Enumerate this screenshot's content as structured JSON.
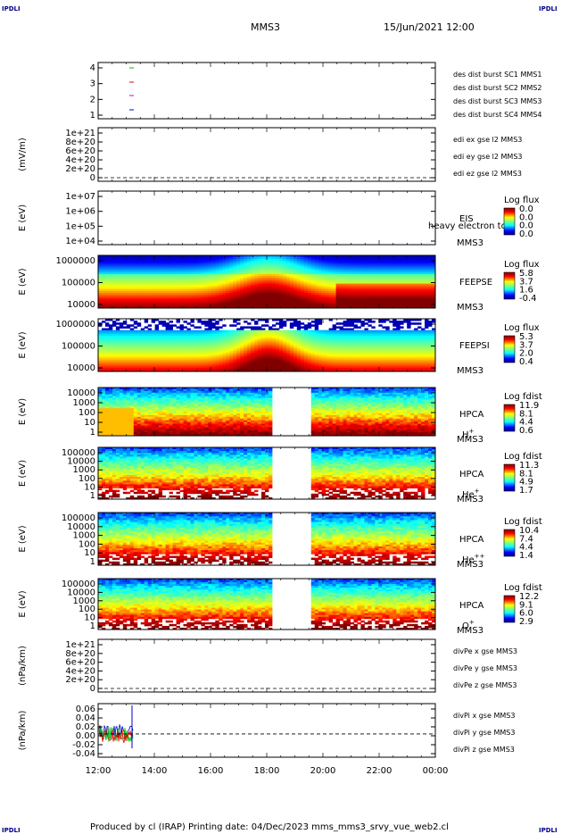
{
  "header": {
    "title": "MMS3",
    "datetime": "15/Jun/2021 12:00",
    "corner_label": "IPDLI"
  },
  "footer": {
    "text": "Produced by cl (IRAP)   Printing date: 04/Dec/2023   mms_mms3_srvy_vue_web2.cl"
  },
  "colors": {
    "red": "#e00000",
    "green": "#00c000",
    "blue": "#0000cc",
    "magenta": "#cc00cc"
  },
  "chart_data": [
    {
      "type": "line",
      "name": "distribution modes",
      "ylim": [
        0.5,
        4.5
      ],
      "ylabel": "",
      "yticks": [
        "4",
        "3",
        "2",
        "1"
      ],
      "x": [
        "12:00",
        "14:00",
        "16:00",
        "18:00",
        "20:00",
        "22:00",
        "00:00"
      ],
      "legend": [
        {
          "label": "des dist burst SC1 MMS1",
          "color": "#0000cc"
        },
        {
          "label": "des dist burst SC2 MMS2",
          "color": "#cc00cc"
        },
        {
          "label": "des dist burst SC3 MMS3",
          "color": "#e00000"
        },
        {
          "label": "des dist burst SC4 MMS4",
          "color": "#00c000"
        }
      ]
    },
    {
      "type": "line",
      "name": "edi E field",
      "ylabel": "(mV/m)",
      "yticks": [
        "1e+21",
        "8e+20",
        "6e+20",
        "4e+20",
        "2e+20",
        "0"
      ],
      "legend": [
        {
          "label": "edi ex gse l2 MMS3",
          "color": "#e00000"
        },
        {
          "label": "edi ey gse l2 MMS3",
          "color": "#00c000"
        },
        {
          "label": "edi ez gse l2 MMS3",
          "color": "#0000cc"
        }
      ]
    },
    {
      "type": "heatmap",
      "ylabel": "E (eV)",
      "yticks": [
        "1e+07",
        "1e+06",
        "1e+05",
        "1e+04"
      ],
      "labels": [
        "EIS",
        "MMS3"
      ],
      "overlay_text": "heavy electron to",
      "colorbar": {
        "title": "Log flux",
        "ticks": [
          "0.0",
          "0.0",
          "0.0",
          "0.0"
        ]
      }
    },
    {
      "type": "heatmap",
      "ylabel": "E (eV)",
      "yticks": [
        "1000000",
        "100000",
        "10000"
      ],
      "labels": [
        "FEEPSE",
        "MMS3"
      ],
      "colorbar": {
        "title": "Log flux",
        "ticks": [
          "5.8",
          "3.7",
          "1.6",
          "-0.4"
        ]
      }
    },
    {
      "type": "heatmap",
      "ylabel": "E (eV)",
      "yticks": [
        "1000000",
        "100000",
        "10000"
      ],
      "labels": [
        "FEEPSI",
        "MMS3"
      ],
      "colorbar": {
        "title": "Log flux",
        "ticks": [
          "5.3",
          "3.7",
          "2.0",
          "0.4"
        ]
      }
    },
    {
      "type": "heatmap",
      "ylabel": "E (eV)",
      "yticks": [
        "10000",
        "1000",
        "100",
        "10",
        "1"
      ],
      "labels": [
        "HPCA",
        "MMS3"
      ],
      "species": "H",
      "charge": "+",
      "colorbar": {
        "title": "Log fdist",
        "ticks": [
          "11.9",
          "8.1",
          "4.4",
          "0.6"
        ]
      }
    },
    {
      "type": "heatmap",
      "ylabel": "E (eV)",
      "yticks": [
        "100000",
        "10000",
        "1000",
        "100",
        "10",
        "1"
      ],
      "labels": [
        "HPCA",
        "MMS3"
      ],
      "species": "He",
      "charge": "+",
      "colorbar": {
        "title": "Log fdist",
        "ticks": [
          "11.3",
          "8.1",
          "4.9",
          "1.7"
        ]
      }
    },
    {
      "type": "heatmap",
      "ylabel": "E (eV)",
      "yticks": [
        "100000",
        "10000",
        "1000",
        "100",
        "10",
        "1"
      ],
      "labels": [
        "HPCA",
        "MMS3"
      ],
      "species": "He",
      "charge": "++",
      "colorbar": {
        "title": "Log fdist",
        "ticks": [
          "10.4",
          "7.4",
          "4.4",
          "1.4"
        ]
      }
    },
    {
      "type": "heatmap",
      "ylabel": "E (eV)",
      "yticks": [
        "100000",
        "10000",
        "1000",
        "100",
        "10",
        "1"
      ],
      "labels": [
        "HPCA",
        "MMS3"
      ],
      "species": "O",
      "charge": "+",
      "colorbar": {
        "title": "Log fdist",
        "ticks": [
          "12.2",
          "9.1",
          "6.0",
          "2.9"
        ]
      }
    },
    {
      "type": "line",
      "ylabel": "(nPa/km)",
      "yticks": [
        "1e+21",
        "8e+20",
        "6e+20",
        "4e+20",
        "2e+20",
        "0"
      ],
      "legend": [
        {
          "label": "divPe x gse MMS3",
          "color": "#e00000"
        },
        {
          "label": "divPe y gse MMS3",
          "color": "#00c000"
        },
        {
          "label": "divPe z gse MMS3",
          "color": "#0000cc"
        }
      ]
    },
    {
      "type": "line",
      "ylabel": "(nPa/km)",
      "yticks": [
        "0.06",
        "0.04",
        "0.02",
        "0.00",
        "-0.02",
        "-0.04"
      ],
      "ylim": [
        -0.05,
        0.065
      ],
      "legend": [
        {
          "label": "divPi x gse MMS3",
          "color": "#e00000"
        },
        {
          "label": "divPi y gse MMS3",
          "color": "#00c000"
        },
        {
          "label": "divPi z gse MMS3",
          "color": "#0000cc"
        }
      ]
    }
  ]
}
